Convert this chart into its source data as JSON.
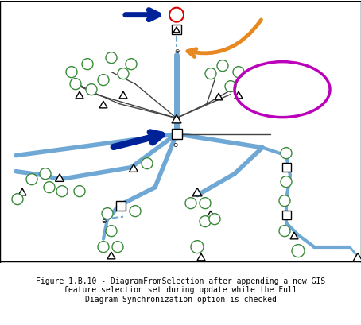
{
  "fig_width": 4.54,
  "fig_height": 4.09,
  "dpi": 100,
  "bg_color": "#ffffff",
  "border_color": "#000000",
  "caption_line1": "Figure 1.B.10 - DiagramFromSelection after appending a new GIS",
  "caption_line2": "feature selection set during update while the Full",
  "caption_line3": "Diagram Synchronization option is checked",
  "caption_fontsize": 7.0,
  "blue_line_color": "#6fa8d4",
  "black_line_color": "#444444",
  "circle_edge_color": "#3a8a3a",
  "red_circle_edge": "#dd0000",
  "dark_blue_arrow": "#002299",
  "orange_arrow": "#e88820",
  "purple_ellipse": "#bb00bb"
}
